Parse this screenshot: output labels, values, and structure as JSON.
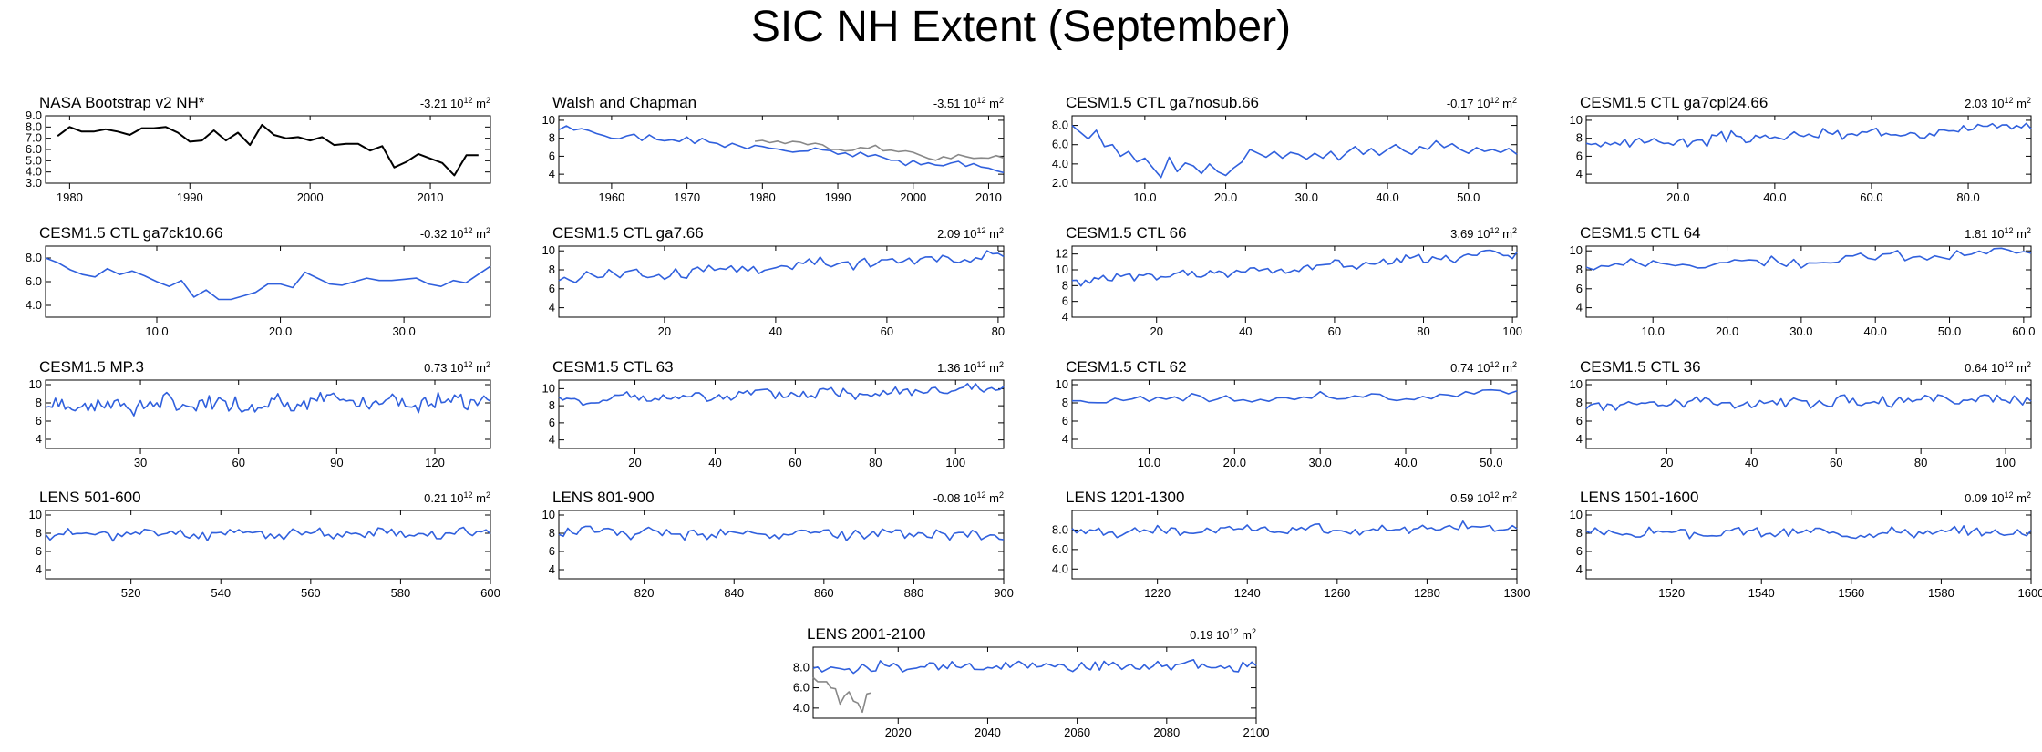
{
  "title": "SIC NH Extent (September)",
  "colors": {
    "obs": "#000000",
    "model": "#3060dd",
    "obs_overlay": "#888888",
    "axis": "#000000"
  },
  "trend_unit_base": "10",
  "trend_unit_exp": "12",
  "trend_unit_suffix": "m",
  "trend_unit_suffix_exp": "2",
  "chart_data": [
    {
      "type": "line",
      "title": "NASA Bootstrap v2 NH*",
      "trend": "-3.21",
      "xlim": [
        1978,
        2015
      ],
      "ylim": [
        3,
        9
      ],
      "yticks": [
        3,
        4,
        5,
        6,
        7,
        8,
        9
      ],
      "ylabels": [
        "3.0",
        "4.0",
        "5.0",
        "6.0",
        "7.0",
        "8.0",
        "9.0"
      ],
      "xticks": [
        1980,
        1990,
        2000,
        2010
      ],
      "xlabels": [
        "1980",
        "1990",
        "2000",
        "2010"
      ],
      "series": [
        {
          "name": "obs",
          "color": "obs",
          "x": [
            1979,
            1980,
            1981,
            1982,
            1983,
            1984,
            1985,
            1986,
            1987,
            1988,
            1989,
            1990,
            1991,
            1992,
            1993,
            1994,
            1995,
            1996,
            1997,
            1998,
            1999,
            2000,
            2001,
            2002,
            2003,
            2004,
            2005,
            2006,
            2007,
            2008,
            2009,
            2010,
            2011,
            2012,
            2013,
            2014
          ],
          "y": [
            7.2,
            8.0,
            7.6,
            7.6,
            7.8,
            7.6,
            7.3,
            7.9,
            7.9,
            8.0,
            7.5,
            6.7,
            6.8,
            7.7,
            6.8,
            7.5,
            6.4,
            8.2,
            7.3,
            7.0,
            7.1,
            6.8,
            7.1,
            6.4,
            6.5,
            6.5,
            5.9,
            6.3,
            4.4,
            4.9,
            5.6,
            5.2,
            4.8,
            3.7,
            5.5,
            5.5
          ]
        }
      ]
    },
    {
      "type": "line",
      "title": "Walsh and Chapman",
      "trend": "-3.51",
      "xlim": [
        1953,
        2012
      ],
      "ylim": [
        3,
        10.5
      ],
      "yticks": [
        4,
        6,
        8,
        10
      ],
      "ylabels": [
        "4",
        "6",
        "8",
        "10"
      ],
      "xticks": [
        1960,
        1970,
        1980,
        1990,
        2000,
        2010
      ],
      "xlabels": [
        "1960",
        "1970",
        "1980",
        "1990",
        "2000",
        "2010"
      ],
      "series": [
        {
          "name": "gray",
          "color": "obs_overlay",
          "seed": 2,
          "n": 34,
          "x0": 1979,
          "x1": 2012,
          "base": [
            7.8,
            5.6
          ],
          "amp": 0.4
        },
        {
          "name": "model",
          "color": "model",
          "seed": 1,
          "n": 60,
          "x0": 1953,
          "x1": 2012,
          "base": [
            8.9,
            4.6
          ],
          "amp": 0.4
        }
      ]
    },
    {
      "type": "line",
      "title": "CESM1.5 CTL ga7nosub.66",
      "trend": "-0.17",
      "xlim": [
        1,
        56
      ],
      "ylim": [
        2,
        9
      ],
      "yticks": [
        2,
        4,
        6,
        8
      ],
      "ylabels": [
        "2.0",
        "4.0",
        "6.0",
        "8.0"
      ],
      "xticks": [
        10,
        20,
        30,
        40,
        50
      ],
      "xlabels": [
        "10.0",
        "20.0",
        "30.0",
        "40.0",
        "50.0"
      ],
      "series": [
        {
          "name": "model",
          "color": "model",
          "x": [
            1,
            2,
            3,
            4,
            5,
            6,
            7,
            8,
            9,
            10,
            11,
            12,
            13,
            14,
            15,
            16,
            17,
            18,
            19,
            20,
            21,
            22,
            23,
            24,
            25,
            26,
            27,
            28,
            29,
            30,
            31,
            32,
            33,
            34,
            35,
            36,
            37,
            38,
            39,
            40,
            41,
            42,
            43,
            44,
            45,
            46,
            47,
            48,
            49,
            50,
            51,
            52,
            53,
            54,
            55,
            56
          ],
          "y": [
            8.0,
            7.3,
            6.6,
            7.5,
            5.8,
            6.0,
            4.8,
            5.3,
            4.2,
            4.6,
            3.6,
            2.6,
            4.7,
            3.2,
            4.1,
            3.8,
            3.0,
            4.0,
            3.2,
            2.8,
            3.6,
            4.2,
            5.5,
            5.1,
            4.7,
            5.3,
            4.6,
            5.2,
            5.0,
            4.5,
            5.1,
            4.6,
            5.3,
            4.4,
            5.2,
            5.8,
            5.0,
            5.6,
            4.9,
            5.5,
            6.0,
            5.4,
            5.0,
            5.8,
            5.5,
            6.4,
            5.7,
            6.1,
            5.5,
            5.1,
            5.7,
            5.3,
            5.5,
            5.2,
            5.6,
            5.0
          ]
        }
      ]
    },
    {
      "type": "line",
      "title": "CESM1.5 CTL ga7cpl24.66",
      "trend": "2.03",
      "xlim": [
        1,
        93
      ],
      "ylim": [
        3,
        10.5
      ],
      "yticks": [
        4,
        6,
        8,
        10
      ],
      "ylabels": [
        "4",
        "6",
        "8",
        "10"
      ],
      "xticks": [
        20,
        40,
        60,
        80
      ],
      "xlabels": [
        "20.0",
        "40.0",
        "60.0",
        "80.0"
      ],
      "series": [
        {
          "name": "model",
          "color": "model",
          "seed": 3,
          "n": 93,
          "x0": 1,
          "x1": 93,
          "base": [
            7.3,
            9.3
          ],
          "amp": 0.55
        }
      ]
    },
    {
      "type": "line",
      "title": "CESM1.5 CTL ga7ck10.66",
      "trend": "-0.32",
      "xlim": [
        1,
        37
      ],
      "ylim": [
        3,
        9
      ],
      "yticks": [
        4,
        6,
        8
      ],
      "ylabels": [
        "4.0",
        "6.0",
        "8.0"
      ],
      "xticks": [
        10,
        20,
        30
      ],
      "xlabels": [
        "10.0",
        "20.0",
        "30.0"
      ],
      "series": [
        {
          "name": "model",
          "color": "model",
          "x": [
            1,
            2,
            3,
            4,
            5,
            6,
            7,
            8,
            9,
            10,
            11,
            12,
            13,
            14,
            15,
            16,
            17,
            18,
            19,
            20,
            21,
            22,
            23,
            24,
            25,
            26,
            27,
            28,
            29,
            30,
            31,
            32,
            33,
            34,
            35,
            36,
            37
          ],
          "y": [
            8.0,
            7.6,
            7.0,
            6.6,
            6.4,
            7.1,
            6.6,
            6.9,
            6.5,
            6.0,
            5.6,
            6.1,
            4.7,
            5.3,
            4.5,
            4.5,
            4.8,
            5.1,
            5.8,
            5.8,
            5.5,
            6.8,
            6.3,
            5.8,
            5.7,
            6.0,
            6.3,
            6.1,
            6.1,
            6.2,
            6.3,
            5.8,
            5.6,
            6.1,
            5.9,
            6.6,
            7.3
          ]
        }
      ]
    },
    {
      "type": "line",
      "title": "CESM1.5 CTL ga7.66",
      "trend": "2.09",
      "xlim": [
        1,
        81
      ],
      "ylim": [
        3,
        10.5
      ],
      "yticks": [
        4,
        6,
        8,
        10
      ],
      "ylabels": [
        "4",
        "6",
        "8",
        "10"
      ],
      "xticks": [
        20,
        40,
        60,
        80
      ],
      "xlabels": [
        "20",
        "40",
        "60",
        "80"
      ],
      "series": [
        {
          "name": "model",
          "color": "model",
          "seed": 4,
          "n": 81,
          "x0": 1,
          "x1": 81,
          "base": [
            7.2,
            9.5
          ],
          "amp": 0.6
        }
      ]
    },
    {
      "type": "line",
      "title": "CESM1.5 CTL 66",
      "trend": "3.69",
      "xlim": [
        1,
        101
      ],
      "ylim": [
        4,
        13
      ],
      "yticks": [
        4,
        6,
        8,
        10,
        12
      ],
      "ylabels": [
        "4",
        "6",
        "8",
        "10",
        "12"
      ],
      "xticks": [
        20,
        40,
        60,
        80,
        100
      ],
      "xlabels": [
        "20",
        "40",
        "60",
        "80",
        "100"
      ],
      "series": [
        {
          "name": "model",
          "color": "model",
          "seed": 5,
          "n": 101,
          "x0": 1,
          "x1": 101,
          "base": [
            8.5,
            12.0
          ],
          "amp": 0.6
        }
      ]
    },
    {
      "type": "line",
      "title": "CESM1.5 CTL 64",
      "trend": "1.81",
      "xlim": [
        1,
        61
      ],
      "ylim": [
        3,
        10.5
      ],
      "yticks": [
        4,
        6,
        8,
        10
      ],
      "ylabels": [
        "4",
        "6",
        "8",
        "10"
      ],
      "xticks": [
        10,
        20,
        30,
        40,
        50,
        60
      ],
      "xlabels": [
        "10.0",
        "20.0",
        "30.0",
        "40.0",
        "50.0",
        "60.0"
      ],
      "series": [
        {
          "name": "model",
          "color": "model",
          "seed": 6,
          "n": 61,
          "x0": 1,
          "x1": 61,
          "base": [
            8.3,
            9.8
          ],
          "amp": 0.5
        }
      ]
    },
    {
      "type": "line",
      "title": "CESM1.5 MP.3",
      "trend": "0.73",
      "xlim": [
        1,
        137
      ],
      "ylim": [
        3,
        10.5
      ],
      "yticks": [
        4,
        6,
        8,
        10
      ],
      "ylabels": [
        "4",
        "6",
        "8",
        "10"
      ],
      "xticks": [
        30,
        60,
        90,
        120
      ],
      "xlabels": [
        "30",
        "60",
        "90",
        "120"
      ],
      "series": [
        {
          "name": "model",
          "color": "model",
          "seed": 7,
          "n": 137,
          "x0": 1,
          "x1": 137,
          "base": [
            7.7,
            8.3
          ],
          "amp": 0.8
        }
      ]
    },
    {
      "type": "line",
      "title": "CESM1.5 CTL 63",
      "trend": "1.36",
      "xlim": [
        1,
        112
      ],
      "ylim": [
        3,
        11
      ],
      "yticks": [
        4,
        6,
        8,
        10
      ],
      "ylabels": [
        "4",
        "6",
        "8",
        "10"
      ],
      "xticks": [
        20,
        40,
        60,
        80,
        100
      ],
      "xlabels": [
        "20",
        "40",
        "60",
        "80",
        "100"
      ],
      "series": [
        {
          "name": "model",
          "color": "model",
          "seed": 8,
          "n": 112,
          "x0": 1,
          "x1": 112,
          "base": [
            8.6,
            10.0
          ],
          "amp": 0.55
        }
      ]
    },
    {
      "type": "line",
      "title": "CESM1.5 CTL 62",
      "trend": "0.74",
      "xlim": [
        1,
        53
      ],
      "ylim": [
        3,
        10.5
      ],
      "yticks": [
        4,
        6,
        8,
        10
      ],
      "ylabels": [
        "4",
        "6",
        "8",
        "10"
      ],
      "xticks": [
        10,
        20,
        30,
        40,
        50
      ],
      "xlabels": [
        "10.0",
        "20.0",
        "30.0",
        "40.0",
        "50.0"
      ],
      "series": [
        {
          "name": "model",
          "color": "model",
          "seed": 9,
          "n": 53,
          "x0": 1,
          "x1": 53,
          "base": [
            8.2,
            9.0
          ],
          "amp": 0.45
        }
      ]
    },
    {
      "type": "line",
      "title": "CESM1.5 CTL 36",
      "trend": "0.64",
      "xlim": [
        1,
        106
      ],
      "ylim": [
        3,
        10.5
      ],
      "yticks": [
        4,
        6,
        8,
        10
      ],
      "ylabels": [
        "4",
        "6",
        "8",
        "10"
      ],
      "xticks": [
        20,
        40,
        60,
        80,
        100
      ],
      "xlabels": [
        "20",
        "40",
        "60",
        "80",
        "100"
      ],
      "series": [
        {
          "name": "model",
          "color": "model",
          "seed": 10,
          "n": 106,
          "x0": 1,
          "x1": 106,
          "base": [
            7.8,
            8.5
          ],
          "amp": 0.55
        }
      ]
    },
    {
      "type": "line",
      "title": "LENS 501-600",
      "trend": "0.21",
      "xlim": [
        501,
        600
      ],
      "ylim": [
        3,
        10.5
      ],
      "yticks": [
        4,
        6,
        8,
        10
      ],
      "ylabels": [
        "4",
        "6",
        "8",
        "10"
      ],
      "xticks": [
        520,
        540,
        560,
        580,
        600
      ],
      "xlabels": [
        "520",
        "540",
        "560",
        "580",
        "600"
      ],
      "series": [
        {
          "name": "model",
          "color": "model",
          "seed": 11,
          "n": 100,
          "x0": 501,
          "x1": 600,
          "base": [
            7.9,
            8.0
          ],
          "amp": 0.5
        }
      ]
    },
    {
      "type": "line",
      "title": "LENS 801-900",
      "trend": "-0.08",
      "xlim": [
        801,
        900
      ],
      "ylim": [
        3,
        10.5
      ],
      "yticks": [
        4,
        6,
        8,
        10
      ],
      "ylabels": [
        "4",
        "6",
        "8",
        "10"
      ],
      "xticks": [
        820,
        840,
        860,
        880,
        900
      ],
      "xlabels": [
        "820",
        "840",
        "860",
        "880",
        "900"
      ],
      "series": [
        {
          "name": "model",
          "color": "model",
          "seed": 12,
          "n": 100,
          "x0": 801,
          "x1": 900,
          "base": [
            8.1,
            7.9
          ],
          "amp": 0.55
        }
      ]
    },
    {
      "type": "line",
      "title": "LENS 1201-1300",
      "trend": "0.59",
      "xlim": [
        1201,
        1300
      ],
      "ylim": [
        3,
        10
      ],
      "yticks": [
        4,
        6,
        8
      ],
      "ylabels": [
        "4.0",
        "6.0",
        "8.0"
      ],
      "xticks": [
        1220,
        1240,
        1260,
        1280,
        1300
      ],
      "xlabels": [
        "1220",
        "1240",
        "1260",
        "1280",
        "1300"
      ],
      "series": [
        {
          "name": "model",
          "color": "model",
          "seed": 13,
          "n": 100,
          "x0": 1201,
          "x1": 1300,
          "base": [
            7.8,
            8.3
          ],
          "amp": 0.45
        }
      ]
    },
    {
      "type": "line",
      "title": "LENS 1501-1600",
      "trend": "0.09",
      "xlim": [
        1501,
        1600
      ],
      "ylim": [
        3,
        10.5
      ],
      "yticks": [
        4,
        6,
        8,
        10
      ],
      "ylabels": [
        "4",
        "6",
        "8",
        "10"
      ],
      "xticks": [
        1520,
        1540,
        1560,
        1580,
        1600
      ],
      "xlabels": [
        "1520",
        "1540",
        "1560",
        "1580",
        "1600"
      ],
      "series": [
        {
          "name": "model",
          "color": "model",
          "seed": 14,
          "n": 100,
          "x0": 1501,
          "x1": 1600,
          "base": [
            8.0,
            8.1
          ],
          "amp": 0.45
        }
      ]
    },
    {
      "type": "line",
      "title": "LENS 2001-2100",
      "trend": "0.19",
      "xlim": [
        2001,
        2100
      ],
      "ylim": [
        3,
        10
      ],
      "yticks": [
        4,
        6,
        8
      ],
      "ylabels": [
        "4.0",
        "6.0",
        "8.0"
      ],
      "xticks": [
        2020,
        2040,
        2060,
        2080,
        2100
      ],
      "xlabels": [
        "2020",
        "2040",
        "2060",
        "2080",
        "2100"
      ],
      "series": [
        {
          "name": "obs",
          "color": "obs_overlay",
          "x": [
            2001,
            2002,
            2003,
            2004,
            2005,
            2006,
            2007,
            2008,
            2009,
            2010,
            2011,
            2012,
            2013,
            2014
          ],
          "y": [
            7.0,
            6.6,
            6.6,
            6.6,
            6.0,
            5.9,
            4.4,
            5.2,
            5.6,
            4.7,
            4.5,
            3.6,
            5.4,
            5.5
          ]
        },
        {
          "name": "model",
          "color": "model",
          "seed": 15,
          "n": 100,
          "x0": 2001,
          "x1": 2100,
          "base": [
            8.0,
            8.2
          ],
          "amp": 0.45
        }
      ]
    }
  ]
}
